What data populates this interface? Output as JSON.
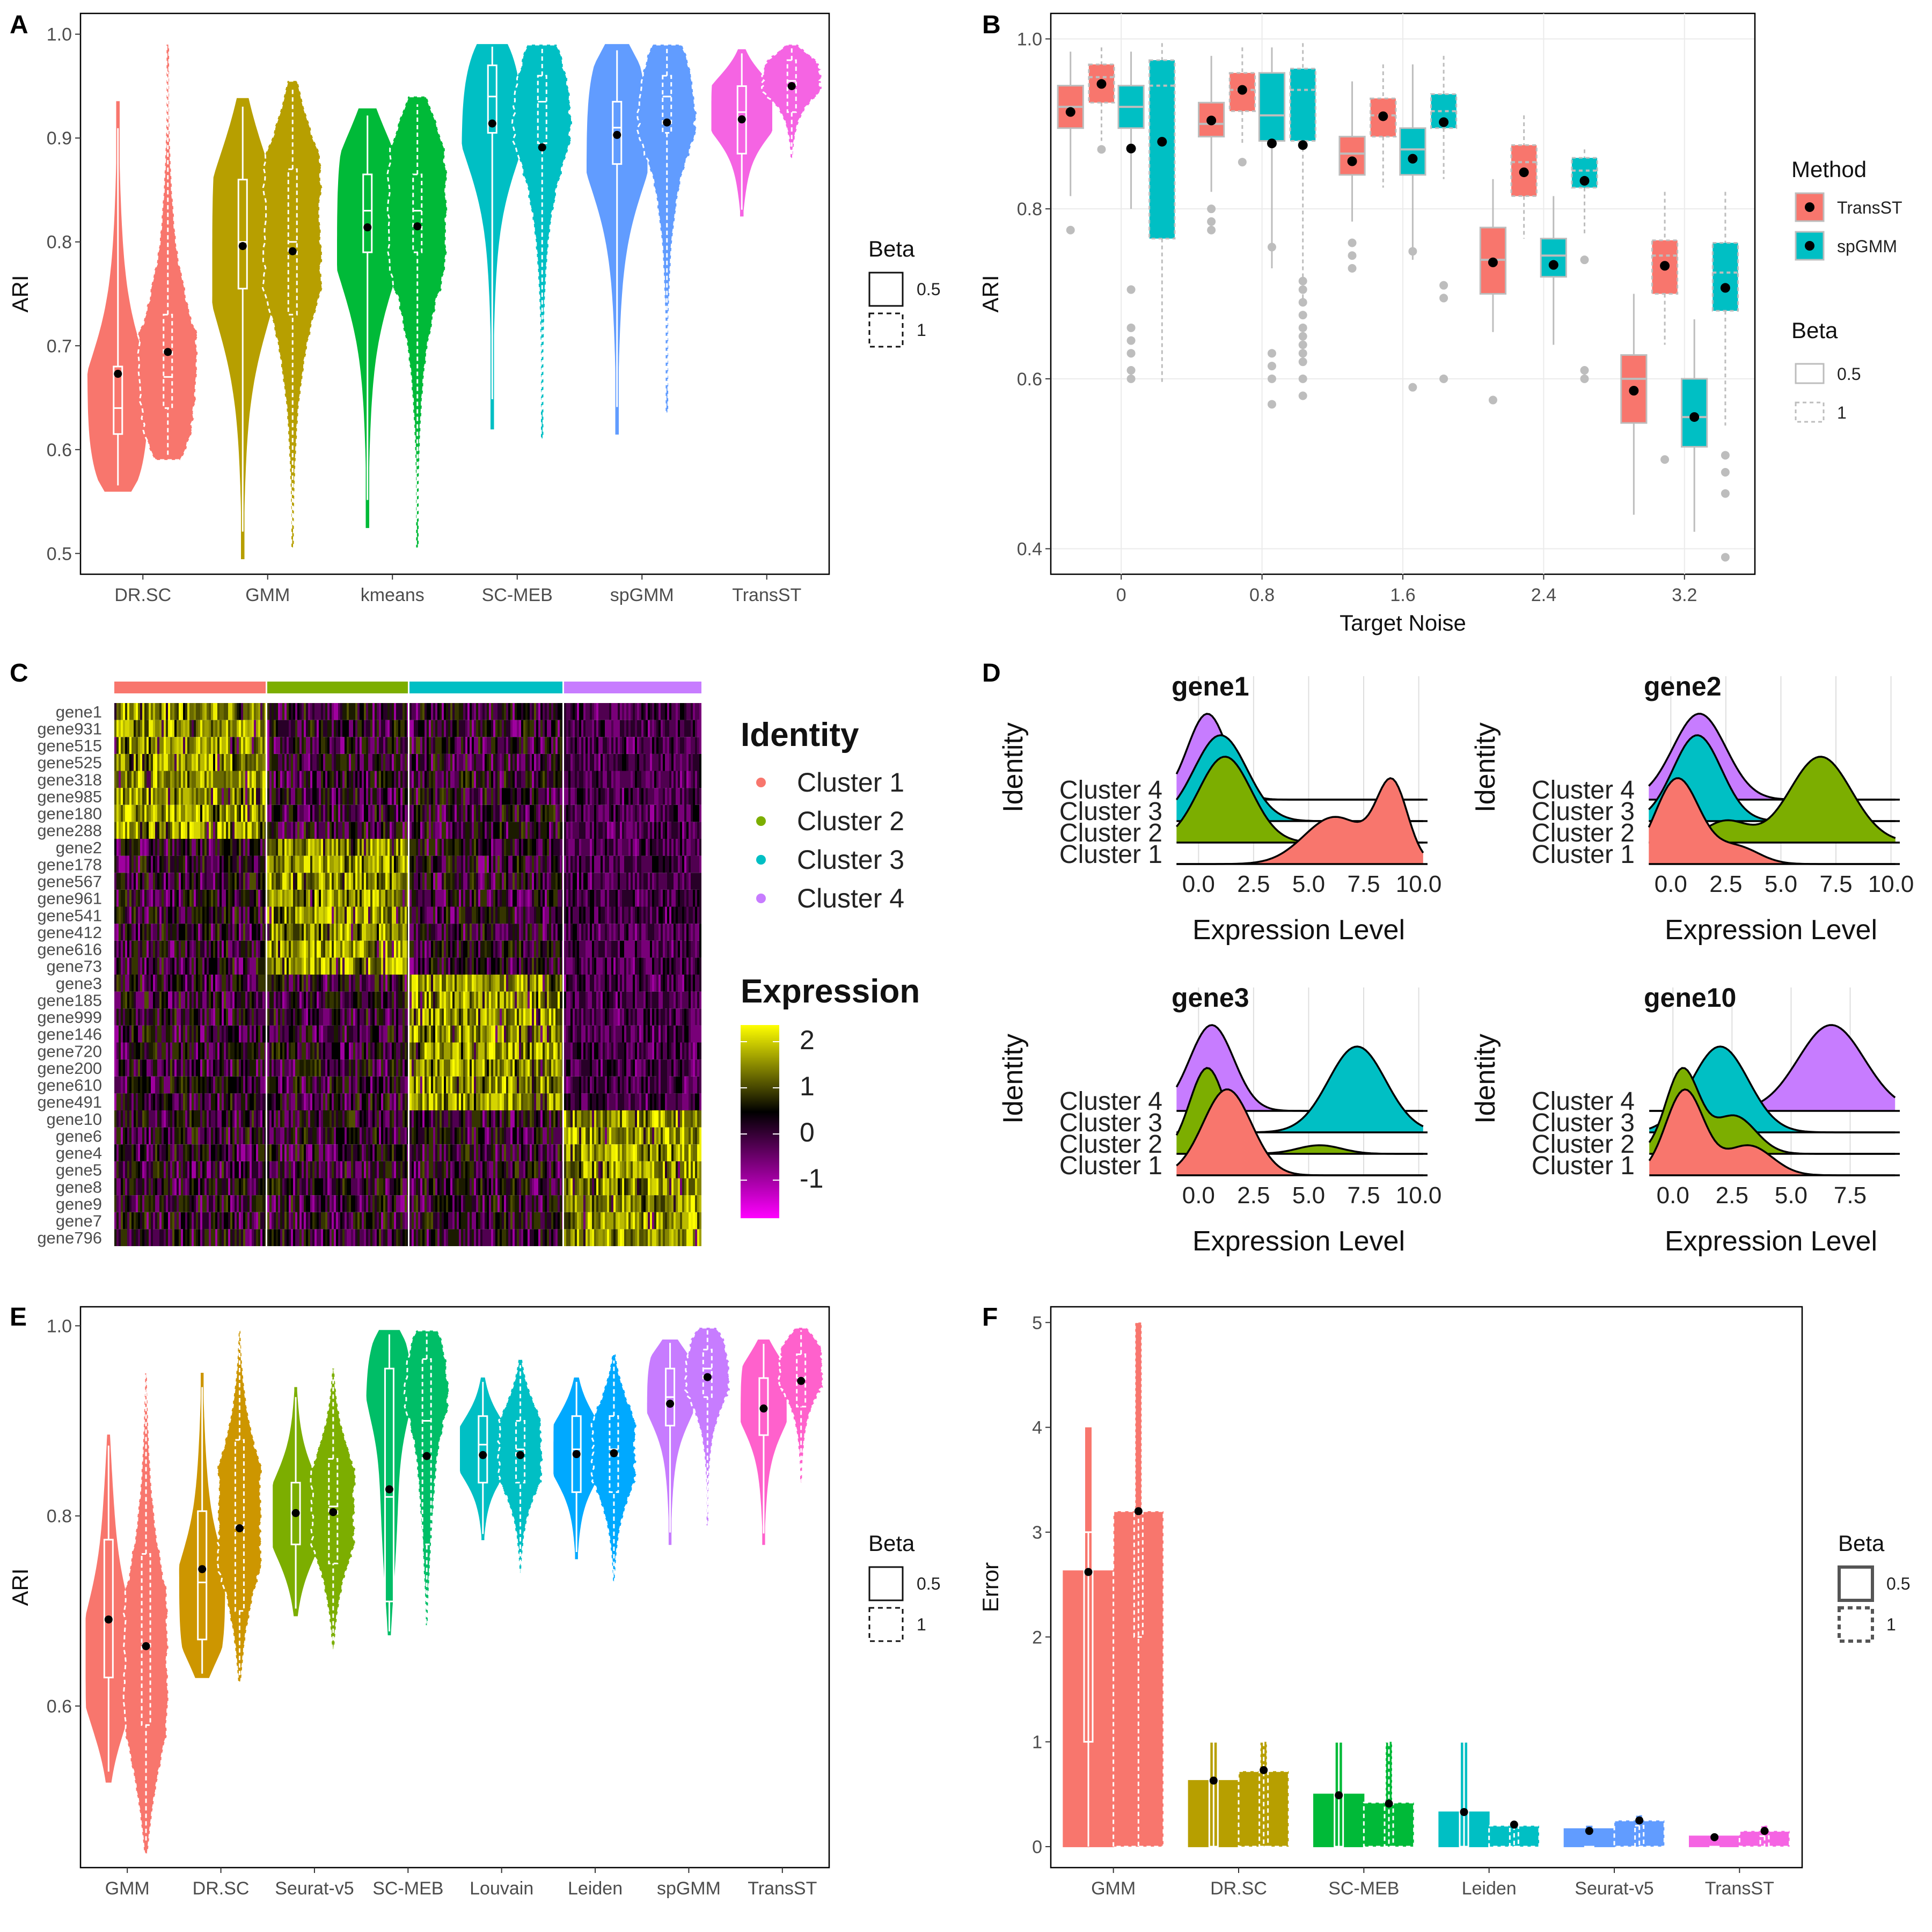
{
  "colors": {
    "c1": "#F8766D",
    "c2": "#B79F00",
    "c3": "#00BA38",
    "c4": "#00BFC4",
    "c5": "#619CFF",
    "c6": "#F564E3",
    "cl1": "#F8766D",
    "cl2": "#7CAE00",
    "cl3": "#00BFC4",
    "cl4": "#C77CFF"
  },
  "chart_data": [
    {
      "panel": "A",
      "type": "violin",
      "categories": [
        "DR.SC",
        "GMM",
        "kmeans",
        "SC-MEB",
        "spGMM",
        "TransST"
      ],
      "ylabel": "ARI",
      "ylim": [
        0.48,
        1.02
      ],
      "yticks": [
        "0.5",
        "0.6",
        "0.7",
        "0.8",
        "0.9",
        "1.0"
      ],
      "legend_title": "Beta",
      "legend_items": [
        "0.5",
        "1"
      ],
      "series": [
        {
          "name": "0.5",
          "min": [
            0.56,
            0.495,
            0.525,
            0.62,
            0.615,
            0.825
          ],
          "max": [
            0.935,
            0.938,
            0.928,
            0.99,
            0.99,
            0.985
          ],
          "q1": [
            0.615,
            0.755,
            0.79,
            0.905,
            0.875,
            0.885
          ],
          "median": [
            0.64,
            0.8,
            0.83,
            0.94,
            0.91,
            0.925
          ],
          "q3": [
            0.68,
            0.86,
            0.865,
            0.97,
            0.935,
            0.95
          ],
          "mean": [
            0.673,
            0.796,
            0.814,
            0.914,
            0.903,
            0.918
          ],
          "mode": [
            0.62,
            0.8,
            0.83,
            0.945,
            0.92,
            0.93
          ]
        },
        {
          "name": "1",
          "min": [
            0.59,
            0.505,
            0.505,
            0.61,
            0.635,
            0.88
          ],
          "max": [
            0.99,
            0.955,
            0.94,
            0.99,
            0.99,
            0.99
          ],
          "q1": [
            0.64,
            0.73,
            0.79,
            0.895,
            0.905,
            0.925
          ],
          "median": [
            0.67,
            0.8,
            0.83,
            0.935,
            0.94,
            0.955
          ],
          "q3": [
            0.73,
            0.87,
            0.865,
            0.96,
            0.96,
            0.975
          ],
          "mean": [
            0.694,
            0.791,
            0.815,
            0.891,
            0.915,
            0.95
          ],
          "mode": [
            0.65,
            0.82,
            0.84,
            0.955,
            0.96,
            0.96
          ]
        }
      ]
    },
    {
      "panel": "B",
      "type": "boxplot",
      "categories": [
        "0",
        "0.8",
        "1.6",
        "2.4",
        "3.2"
      ],
      "xlabel": "Target Noise",
      "ylabel": "ARI",
      "ylim": [
        0.37,
        1.03
      ],
      "yticks": [
        "0.4",
        "0.6",
        "0.8",
        "1.0"
      ],
      "legend_title": "Method",
      "legend_items": [
        "TransST",
        "spGMM"
      ],
      "legend2_title": "Beta",
      "legend2_items": [
        "0.5",
        "1"
      ],
      "series": [
        {
          "name": "TransST 0.5",
          "q1": [
            0.895,
            0.885,
            0.84,
            0.7,
            0.548
          ],
          "median": [
            0.92,
            0.9,
            0.865,
            0.74,
            0.6
          ],
          "q3": [
            0.945,
            0.925,
            0.885,
            0.778,
            0.628
          ],
          "wlo": [
            0.815,
            0.82,
            0.785,
            0.655,
            0.44
          ],
          "whi": [
            0.985,
            0.98,
            0.95,
            0.835,
            0.7
          ],
          "mean": [
            0.914,
            0.904,
            0.856,
            0.737,
            0.586
          ],
          "outliers": [
            [
              0.775
            ],
            [
              0.8,
              0.785,
              0.775
            ],
            [
              0.76,
              0.745,
              0.73
            ],
            [
              0.575
            ],
            []
          ]
        },
        {
          "name": "TransST 1",
          "q1": [
            0.925,
            0.915,
            0.885,
            0.815,
            0.7
          ],
          "median": [
            0.955,
            0.94,
            0.91,
            0.855,
            0.745
          ],
          "q3": [
            0.97,
            0.96,
            0.93,
            0.875,
            0.763
          ],
          "wlo": [
            0.88,
            0.875,
            0.825,
            0.765,
            0.64
          ],
          "whi": [
            0.99,
            0.99,
            0.97,
            0.91,
            0.82
          ],
          "mean": [
            0.947,
            0.94,
            0.909,
            0.843,
            0.733
          ],
          "outliers": [
            [
              0.87
            ],
            [
              0.855
            ],
            [],
            [],
            [
              0.505
            ]
          ]
        },
        {
          "name": "spGMM 0.5",
          "q1": [
            0.895,
            0.88,
            0.84,
            0.72,
            0.52
          ],
          "median": [
            0.92,
            0.91,
            0.87,
            0.745,
            0.555
          ],
          "q3": [
            0.945,
            0.96,
            0.895,
            0.765,
            0.6
          ],
          "wlo": [
            0.8,
            0.73,
            0.74,
            0.64,
            0.42
          ],
          "whi": [
            0.985,
            0.99,
            0.97,
            0.815,
            0.67
          ],
          "mean": [
            0.871,
            0.877,
            0.859,
            0.734,
            0.555
          ],
          "outliers": [
            [
              0.705,
              0.66,
              0.645,
              0.63,
              0.61,
              0.6
            ],
            [
              0.755,
              0.63,
              0.615,
              0.6,
              0.57
            ],
            [
              0.75,
              0.59
            ],
            [],
            []
          ]
        },
        {
          "name": "spGMM 1",
          "q1": [
            0.765,
            0.88,
            0.895,
            0.825,
            0.68
          ],
          "median": [
            0.945,
            0.94,
            0.915,
            0.845,
            0.725
          ],
          "q3": [
            0.975,
            0.965,
            0.935,
            0.86,
            0.76
          ],
          "wlo": [
            0.595,
            0.69,
            0.835,
            0.77,
            0.545
          ],
          "whi": [
            0.995,
            0.995,
            0.98,
            0.87,
            0.82
          ],
          "mean": [
            0.879,
            0.875,
            0.902,
            0.833,
            0.707
          ],
          "outliers": [
            [],
            [
              0.715,
              0.705,
              0.69,
              0.675,
              0.66,
              0.65,
              0.64,
              0.63,
              0.62,
              0.6,
              0.58
            ],
            [
              0.71,
              0.695,
              0.6
            ],
            [
              0.74,
              0.61,
              0.6
            ],
            [
              0.51,
              0.49,
              0.465,
              0.39
            ]
          ]
        }
      ]
    },
    {
      "panel": "C",
      "type": "heatmap",
      "genes": [
        "gene1",
        "gene931",
        "gene515",
        "gene525",
        "gene318",
        "gene985",
        "gene180",
        "gene288",
        "gene2",
        "gene178",
        "gene567",
        "gene961",
        "gene541",
        "gene412",
        "gene616",
        "gene73",
        "gene3",
        "gene185",
        "gene999",
        "gene146",
        "gene720",
        "gene200",
        "gene610",
        "gene491",
        "gene10",
        "gene6",
        "gene4",
        "gene5",
        "gene8",
        "gene9",
        "gene7",
        "gene796"
      ],
      "clusters": [
        "Cluster 1",
        "Cluster 2",
        "Cluster 3",
        "Cluster 4"
      ],
      "legend_identity_title": "Identity",
      "legend_expression_title": "Expression",
      "expression_ticks": [
        "2",
        "1",
        "0",
        "-1"
      ]
    },
    {
      "panel": "D",
      "type": "ridgeline",
      "xlabel": "Expression Level",
      "ylabel": "Identity",
      "clusters": [
        "Cluster 1",
        "Cluster 2",
        "Cluster 3",
        "Cluster 4"
      ],
      "xticks_common": [
        "0.0",
        "2.5",
        "5.0",
        "7.5",
        "10.0"
      ],
      "xticks_gene10": [
        "0.0",
        "2.5",
        "5.0",
        "7.5"
      ],
      "genes": [
        {
          "gene": "gene1",
          "peaks": [
            [
              [
                6.2,
                1.4,
                0.55
              ],
              [
                8.8,
                0.7,
                0.9
              ]
            ],
            [
              [
                1.2,
                1.2,
                1.0
              ]
            ],
            [
              [
                1.0,
                1.2,
                1.0
              ]
            ],
            [
              [
                0.4,
                0.9,
                1.0
              ]
            ]
          ]
        },
        {
          "gene": "gene2",
          "peaks": [
            [
              [
                0.3,
                1.0,
                1.0
              ],
              [
                3.0,
                1.0,
                0.2
              ]
            ],
            [
              [
                6.8,
                1.4,
                1.0
              ],
              [
                2.5,
                1.0,
                0.25
              ]
            ],
            [
              [
                1.2,
                1.1,
                1.0
              ]
            ],
            [
              [
                1.3,
                1.2,
                1.0
              ]
            ]
          ]
        },
        {
          "gene": "gene3",
          "peaks": [
            [
              [
                1.3,
                1.1,
                1.0
              ]
            ],
            [
              [
                0.4,
                0.8,
                1.0
              ],
              [
                5.5,
                1.0,
                0.1
              ]
            ],
            [
              [
                7.2,
                1.3,
                1.0
              ]
            ],
            [
              [
                0.6,
                1.0,
                1.0
              ]
            ]
          ]
        },
        {
          "gene": "gene10",
          "peaks": [
            [
              [
                0.5,
                0.8,
                1.0
              ],
              [
                3.2,
                1.0,
                0.35
              ]
            ],
            [
              [
                0.4,
                0.7,
                1.0
              ],
              [
                2.6,
                0.9,
                0.45
              ]
            ],
            [
              [
                2.0,
                1.2,
                1.0
              ]
            ],
            [
              [
                6.7,
                1.4,
                1.0
              ]
            ]
          ]
        }
      ]
    },
    {
      "panel": "E",
      "type": "violin",
      "categories": [
        "GMM",
        "DR.SC",
        "Seurat-v5",
        "SC-MEB",
        "Louvain",
        "Leiden",
        "spGMM",
        "TransST"
      ],
      "ylabel": "ARI",
      "ylim": [
        0.43,
        1.02
      ],
      "yticks": [
        "0.6",
        "0.8",
        "1.0"
      ],
      "legend_title": "Beta",
      "legend_items": [
        "0.5",
        "1"
      ],
      "series": [
        {
          "name": "0.5",
          "min": [
            0.52,
            0.63,
            0.695,
            0.675,
            0.775,
            0.755,
            0.77,
            0.77
          ],
          "max": [
            0.885,
            0.95,
            0.935,
            0.995,
            0.945,
            0.945,
            0.985,
            0.985
          ],
          "q1": [
            0.63,
            0.67,
            0.77,
            0.71,
            0.835,
            0.825,
            0.895,
            0.885
          ],
          "median": [
            0.69,
            0.73,
            0.805,
            0.82,
            0.875,
            0.87,
            0.925,
            0.915
          ],
          "q3": [
            0.775,
            0.805,
            0.835,
            0.955,
            0.905,
            0.905,
            0.955,
            0.945
          ],
          "mean": [
            0.691,
            0.744,
            0.803,
            0.828,
            0.864,
            0.865,
            0.918,
            0.913
          ],
          "mode": [
            0.64,
            0.7,
            0.8,
            0.96,
            0.87,
            0.87,
            0.94,
            0.93
          ]
        },
        {
          "name": "1",
          "min": [
            0.445,
            0.625,
            0.66,
            0.685,
            0.74,
            0.73,
            0.79,
            0.835
          ],
          "max": [
            0.95,
            0.995,
            0.955,
            0.995,
            0.965,
            0.97,
            0.998,
            0.998
          ],
          "q1": [
            0.58,
            0.7,
            0.75,
            0.77,
            0.835,
            0.825,
            0.925,
            0.915
          ],
          "median": [
            0.665,
            0.79,
            0.81,
            0.9,
            0.87,
            0.87,
            0.955,
            0.945
          ],
          "q3": [
            0.76,
            0.88,
            0.86,
            0.965,
            0.9,
            0.905,
            0.975,
            0.97
          ],
          "mean": [
            0.663,
            0.787,
            0.804,
            0.863,
            0.864,
            0.866,
            0.946,
            0.942
          ],
          "mode": [
            0.64,
            0.8,
            0.81,
            0.96,
            0.87,
            0.87,
            0.96,
            0.96
          ]
        }
      ]
    },
    {
      "panel": "F",
      "type": "violin",
      "categories": [
        "GMM",
        "DR.SC",
        "SC-MEB",
        "Leiden",
        "Seurat-v5",
        "TransST"
      ],
      "ylabel": "Error",
      "ylim": [
        -0.2,
        5.15
      ],
      "yticks": [
        "0",
        "1",
        "2",
        "3",
        "4",
        "5"
      ],
      "legend_title": "Beta",
      "legend_items": [
        "0.5",
        "1"
      ],
      "series": [
        {
          "name": "0.5",
          "max": [
            4.0,
            1.0,
            1.0,
            1.0,
            0.2,
            0.1
          ],
          "dens": [
            2.63,
            0.63,
            0.5,
            0.33,
            0.17,
            0.1
          ],
          "q1": [
            1.0,
            0.0,
            0.0,
            0.0,
            0.0,
            0.0
          ],
          "median": [
            1.0,
            1.0,
            1.0,
            0.0,
            0.0,
            0.0
          ],
          "q3": [
            3.0,
            1.0,
            1.0,
            1.0,
            0.0,
            0.0
          ],
          "mean": [
            2.62,
            0.63,
            0.49,
            0.33,
            0.15,
            0.09
          ]
        },
        {
          "name": "1",
          "max": [
            5.0,
            1.0,
            1.0,
            0.2,
            0.3,
            0.2
          ],
          "dens": [
            3.2,
            0.72,
            0.42,
            0.2,
            0.25,
            0.15
          ],
          "q1": [
            2.0,
            0.0,
            0.0,
            0.0,
            0.0,
            0.0
          ],
          "median": [
            3.0,
            1.0,
            0.0,
            0.0,
            0.0,
            0.0
          ],
          "q3": [
            3.2,
            1.0,
            1.0,
            0.2,
            0.2,
            0.1
          ],
          "mean": [
            3.2,
            0.73,
            0.41,
            0.21,
            0.25,
            0.15
          ]
        }
      ]
    }
  ]
}
